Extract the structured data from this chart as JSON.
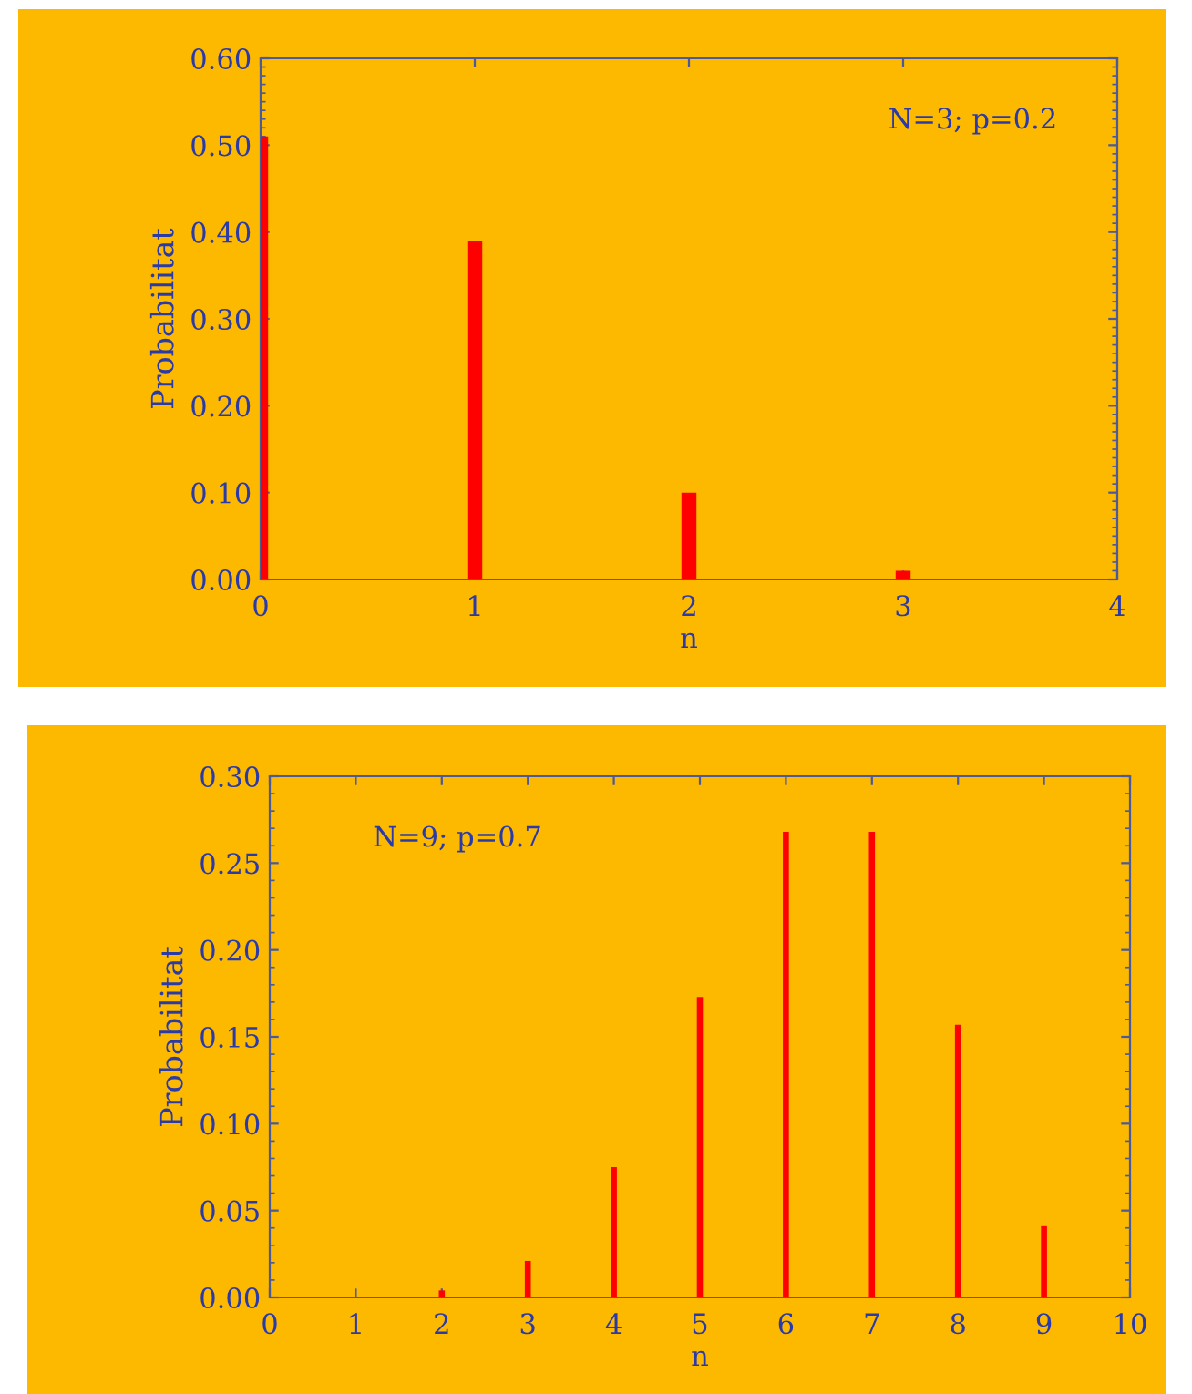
{
  "chart_data": [
    {
      "type": "bar",
      "x": [
        0,
        1,
        2,
        3
      ],
      "values": [
        0.51,
        0.39,
        0.1,
        0.01
      ],
      "color": "#ff0000",
      "xlabel": "n",
      "ylabel": "Probabilitat",
      "annotations": [
        "N=3; p=0.2"
      ],
      "xlim": [
        0,
        4
      ],
      "xticks": [
        0,
        1,
        2,
        3,
        4
      ],
      "ylim": [
        0,
        0.6
      ],
      "yticks": [
        {
          "value": 0,
          "label": "0.00"
        },
        {
          "value": 0.1,
          "label": "0.10"
        },
        {
          "value": 0.2,
          "label": "0.20"
        },
        {
          "value": 0.3,
          "label": "0.30"
        },
        {
          "value": 0.4,
          "label": "0.40"
        },
        {
          "value": 0.5,
          "label": "0.50"
        },
        {
          "value": 0.6,
          "label": "0.60"
        }
      ],
      "grid": false,
      "legend": false
    },
    {
      "type": "bar",
      "x": [
        2,
        3,
        4,
        5,
        6,
        7,
        8,
        9
      ],
      "values": [
        0.004,
        0.021,
        0.075,
        0.173,
        0.268,
        0.268,
        0.157,
        0.041
      ],
      "color": "#ff0000",
      "xlabel": "n",
      "ylabel": "Probabilitat",
      "annotations": [
        "N=9; p=0.7"
      ],
      "xlim": [
        0,
        10
      ],
      "xticks": [
        0,
        1,
        2,
        3,
        4,
        5,
        6,
        7,
        8,
        9,
        10
      ],
      "ylim": [
        0,
        0.3
      ],
      "yticks": [
        {
          "value": 0,
          "label": "0.00"
        },
        {
          "value": 0.05,
          "label": "0.05"
        },
        {
          "value": 0.1,
          "label": "0.10"
        },
        {
          "value": 0.15,
          "label": "0.15"
        },
        {
          "value": 0.2,
          "label": "0.20"
        },
        {
          "value": 0.25,
          "label": "0.25"
        },
        {
          "value": 0.3,
          "label": "0.30"
        }
      ],
      "grid": false,
      "legend": false
    }
  ]
}
